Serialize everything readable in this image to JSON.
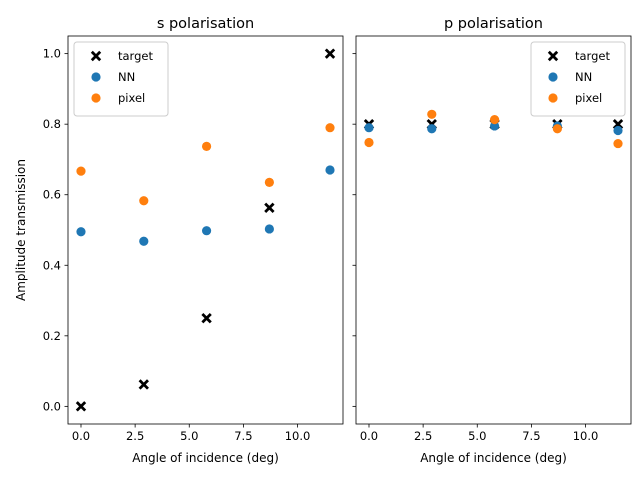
{
  "chart_data": [
    {
      "type": "scatter",
      "title": "s polarisation",
      "xlabel": "Angle of incidence (deg)",
      "ylabel": "Amplitude transmission",
      "xlim": [
        -0.6,
        12.1
      ],
      "ylim": [
        -0.05,
        1.05
      ],
      "xticks": [
        "0.0",
        "2.5",
        "5.0",
        "7.5",
        "10.0"
      ],
      "yticks": [
        "0.0",
        "0.2",
        "0.4",
        "0.6",
        "0.8",
        "1.0"
      ],
      "legend_position": "top-left",
      "series": [
        {
          "name": "target",
          "marker": "x",
          "color": "#000000",
          "x": [
            0.0,
            2.9,
            5.8,
            8.7,
            11.5
          ],
          "y": [
            0.0,
            0.062,
            0.25,
            0.563,
            1.0
          ]
        },
        {
          "name": "NN",
          "marker": "o",
          "color": "#1f77b4",
          "x": [
            0.0,
            2.9,
            5.8,
            8.7,
            11.5
          ],
          "y": [
            0.495,
            0.468,
            0.498,
            0.503,
            0.67
          ]
        },
        {
          "name": "pixel",
          "marker": "o",
          "color": "#ff7f0e",
          "x": [
            0.0,
            2.9,
            5.8,
            8.7,
            11.5
          ],
          "y": [
            0.667,
            0.583,
            0.737,
            0.635,
            0.79
          ]
        }
      ]
    },
    {
      "type": "scatter",
      "title": "p polarisation",
      "xlabel": "Angle of incidence (deg)",
      "ylabel": "",
      "xlim": [
        -0.6,
        12.1
      ],
      "ylim": [
        -0.05,
        1.05
      ],
      "xticks": [
        "0.0",
        "2.5",
        "5.0",
        "7.5",
        "10.0"
      ],
      "yticks": [],
      "legend_position": "top-right",
      "series": [
        {
          "name": "target",
          "marker": "x",
          "color": "#000000",
          "x": [
            0.0,
            2.9,
            5.8,
            8.7,
            11.5
          ],
          "y": [
            0.8,
            0.8,
            0.8,
            0.8,
            0.8
          ]
        },
        {
          "name": "NN",
          "marker": "o",
          "color": "#1f77b4",
          "x": [
            0.0,
            2.9,
            5.8,
            8.7,
            11.5
          ],
          "y": [
            0.79,
            0.787,
            0.795,
            0.795,
            0.782
          ]
        },
        {
          "name": "pixel",
          "marker": "o",
          "color": "#ff7f0e",
          "x": [
            0.0,
            2.9,
            5.8,
            8.7,
            11.5
          ],
          "y": [
            0.748,
            0.828,
            0.813,
            0.787,
            0.745
          ]
        }
      ]
    }
  ]
}
